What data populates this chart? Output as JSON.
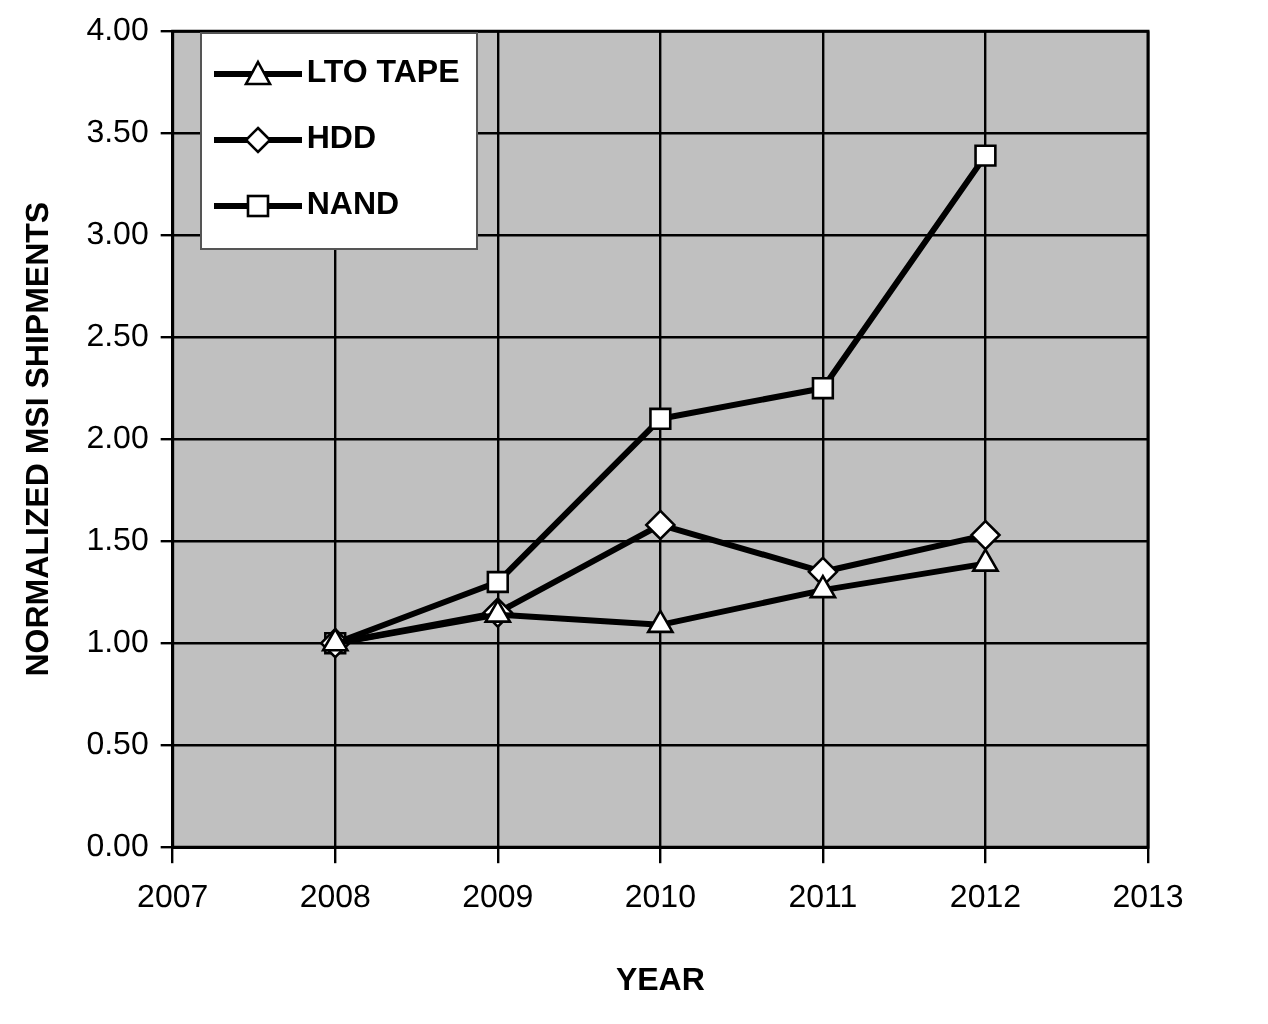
{
  "chart_data": {
    "type": "line",
    "xlabel": "YEAR",
    "ylabel": "NORMALIZED MSI SHIPMENTS",
    "x": [
      2008,
      2009,
      2010,
      2011,
      2012
    ],
    "series": [
      {
        "name": "LTO TAPE",
        "color": "#000000",
        "marker": "triangle",
        "values": [
          1.0,
          1.14,
          1.09,
          1.26,
          1.39
        ]
      },
      {
        "name": "HDD",
        "color": "#000000",
        "marker": "diamond",
        "values": [
          1.0,
          1.15,
          1.58,
          1.35,
          1.53
        ]
      },
      {
        "name": "NAND",
        "color": "#000000",
        "marker": "square",
        "values": [
          1.0,
          1.3,
          2.1,
          2.25,
          3.39
        ]
      }
    ],
    "xlim": [
      2007,
      2013
    ],
    "xticks": [
      2007,
      2008,
      2009,
      2010,
      2011,
      2012,
      2013
    ],
    "ylim": [
      0,
      4
    ],
    "yticks": [
      {
        "value": 0,
        "label": "0.00"
      },
      {
        "value": 0.5,
        "label": "0.50"
      },
      {
        "value": 1,
        "label": "1.00"
      },
      {
        "value": 1.5,
        "label": "1.50"
      },
      {
        "value": 2,
        "label": "2.00"
      },
      {
        "value": 2.5,
        "label": "2.50"
      },
      {
        "value": 3,
        "label": "3.00"
      },
      {
        "value": 3.5,
        "label": "3.50"
      },
      {
        "value": 4,
        "label": "4.00"
      }
    ],
    "grid": true,
    "legend": "top left",
    "line_style": "solid"
  }
}
